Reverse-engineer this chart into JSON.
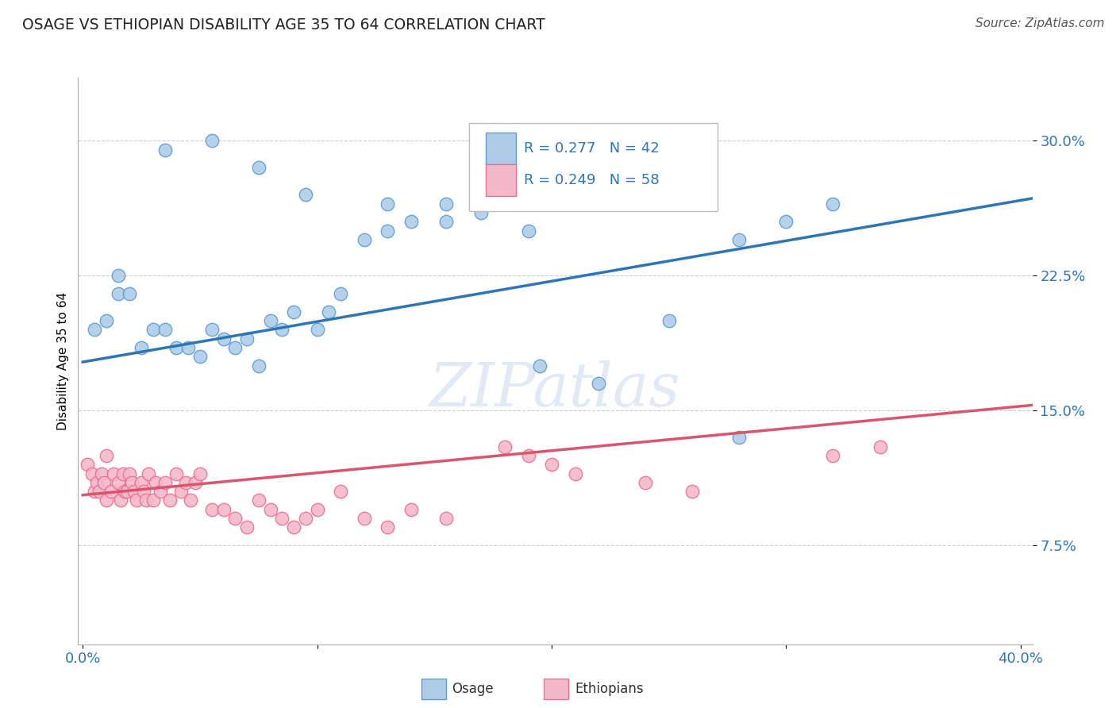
{
  "title": "OSAGE VS ETHIOPIAN DISABILITY AGE 35 TO 64 CORRELATION CHART",
  "source": "Source: ZipAtlas.com",
  "ylabel": "Disability Age 35 to 64",
  "ytick_labels": [
    "7.5%",
    "15.0%",
    "22.5%",
    "30.0%"
  ],
  "ytick_values": [
    0.075,
    0.15,
    0.225,
    0.3
  ],
  "xlim": [
    -0.002,
    0.405
  ],
  "ylim": [
    0.02,
    0.335
  ],
  "legend_R_osage": "R = 0.277",
  "legend_N_osage": "N = 42",
  "legend_R_ethiopian": "R = 0.249",
  "legend_N_ethiopian": "N = 58",
  "osage_color": "#aecce8",
  "osage_edge_color": "#5b9bd5",
  "ethiopian_color": "#f4b8c8",
  "ethiopian_edge_color": "#e87090",
  "trend_blue": "#2e75b6",
  "trend_pink": "#d9546e",
  "legend_text_color": "#2e75b6",
  "grid_color": "#cccccc",
  "background_color": "#ffffff",
  "osage_x": [
    0.005,
    0.01,
    0.015,
    0.015,
    0.02,
    0.025,
    0.03,
    0.035,
    0.04,
    0.045,
    0.05,
    0.055,
    0.06,
    0.065,
    0.07,
    0.075,
    0.08,
    0.085,
    0.09,
    0.1,
    0.105,
    0.11,
    0.12,
    0.13,
    0.14,
    0.155,
    0.17,
    0.19,
    0.22,
    0.25,
    0.28,
    0.3,
    0.32,
    0.035,
    0.055,
    0.075,
    0.095,
    0.13,
    0.155,
    0.175,
    0.195,
    0.28
  ],
  "osage_y": [
    0.195,
    0.2,
    0.215,
    0.225,
    0.215,
    0.185,
    0.195,
    0.195,
    0.185,
    0.185,
    0.18,
    0.195,
    0.19,
    0.185,
    0.19,
    0.175,
    0.2,
    0.195,
    0.205,
    0.195,
    0.205,
    0.215,
    0.245,
    0.25,
    0.255,
    0.265,
    0.26,
    0.25,
    0.165,
    0.2,
    0.245,
    0.255,
    0.265,
    0.295,
    0.3,
    0.285,
    0.27,
    0.265,
    0.255,
    0.265,
    0.175,
    0.135
  ],
  "ethiopian_x": [
    0.002,
    0.004,
    0.005,
    0.006,
    0.007,
    0.008,
    0.009,
    0.01,
    0.01,
    0.012,
    0.013,
    0.015,
    0.016,
    0.017,
    0.018,
    0.019,
    0.02,
    0.021,
    0.022,
    0.023,
    0.025,
    0.026,
    0.027,
    0.028,
    0.03,
    0.031,
    0.033,
    0.035,
    0.037,
    0.04,
    0.042,
    0.044,
    0.046,
    0.048,
    0.05,
    0.055,
    0.06,
    0.065,
    0.07,
    0.075,
    0.08,
    0.085,
    0.09,
    0.095,
    0.1,
    0.11,
    0.12,
    0.13,
    0.14,
    0.155,
    0.18,
    0.19,
    0.2,
    0.21,
    0.24,
    0.26,
    0.32,
    0.34
  ],
  "ethiopian_y": [
    0.12,
    0.115,
    0.105,
    0.11,
    0.105,
    0.115,
    0.11,
    0.1,
    0.125,
    0.105,
    0.115,
    0.11,
    0.1,
    0.115,
    0.105,
    0.105,
    0.115,
    0.11,
    0.105,
    0.1,
    0.11,
    0.105,
    0.1,
    0.115,
    0.1,
    0.11,
    0.105,
    0.11,
    0.1,
    0.115,
    0.105,
    0.11,
    0.1,
    0.11,
    0.115,
    0.095,
    0.095,
    0.09,
    0.085,
    0.1,
    0.095,
    0.09,
    0.085,
    0.09,
    0.095,
    0.105,
    0.09,
    0.085,
    0.095,
    0.09,
    0.13,
    0.125,
    0.12,
    0.115,
    0.11,
    0.105,
    0.125,
    0.13
  ],
  "osage_trend_x": [
    0.0,
    0.405
  ],
  "osage_trend_y": [
    0.177,
    0.268
  ],
  "ethiopian_trend_x": [
    0.0,
    0.405
  ],
  "ethiopian_trend_y": [
    0.103,
    0.153
  ],
  "xtick_positions": [
    0.0,
    0.1,
    0.2,
    0.3,
    0.4
  ],
  "xtick_labels": [
    "0.0%",
    "",
    "",
    "",
    "40.0%"
  ]
}
